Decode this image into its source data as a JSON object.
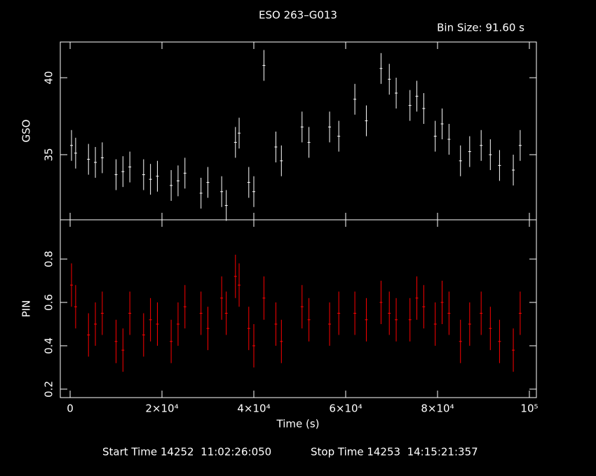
{
  "chart_data": [
    {
      "type": "errorbar",
      "title": "ESO 263–G013",
      "subtitle": "Bin Size: 91.60 s",
      "ylabel": "GSO",
      "color": "#ffffff",
      "x": [
        300,
        1200,
        4000,
        5500,
        7000,
        10000,
        11500,
        13000,
        16000,
        17500,
        19000,
        22000,
        23500,
        25000,
        28500,
        30000,
        33000,
        34000,
        36000,
        36800,
        38900,
        40000,
        42200,
        44800,
        46000,
        50500,
        52000,
        56500,
        58500,
        62000,
        64500,
        67700,
        69500,
        71000,
        74000,
        75500,
        77000,
        79500,
        81000,
        82500,
        85000,
        87000,
        89500,
        91500,
        93500,
        96500,
        98000
      ],
      "values": [
        35.6,
        35.1,
        34.7,
        34.5,
        34.8,
        33.7,
        33.9,
        34.2,
        33.7,
        33.4,
        33.6,
        33.0,
        33.3,
        33.8,
        32.5,
        33.2,
        32.6,
        31.7,
        35.8,
        36.4,
        33.2,
        32.6,
        40.8,
        35.5,
        34.6,
        36.8,
        35.8,
        36.8,
        36.2,
        38.6,
        37.2,
        40.6,
        39.9,
        39.0,
        38.2,
        38.8,
        38.0,
        36.2,
        37.0,
        36.0,
        34.6,
        35.2,
        35.6,
        35.0,
        34.3,
        34.0,
        35.6
      ],
      "errors": [
        1.0,
        1.0,
        1.0,
        1.0,
        1.0,
        1.0,
        1.0,
        1.0,
        1.0,
        1.0,
        1.0,
        1.0,
        1.0,
        1.0,
        1.0,
        1.0,
        1.0,
        1.0,
        1.0,
        1.0,
        1.0,
        1.0,
        1.0,
        1.0,
        1.0,
        1.0,
        1.0,
        1.0,
        1.0,
        1.0,
        1.0,
        1.0,
        1.0,
        1.0,
        1.0,
        1.0,
        1.0,
        1.0,
        1.0,
        1.0,
        1.0,
        1.0,
        1.0,
        1.0,
        1.0,
        1.0,
        1.0
      ],
      "xlim": [
        -2140,
        101530
      ],
      "ylim": [
        30.77,
        42.32
      ],
      "yticks": [
        35,
        40
      ]
    },
    {
      "type": "errorbar",
      "ylabel": "PIN",
      "xlabel": "Time (s)",
      "color": "#ff0000",
      "x": [
        300,
        1200,
        4000,
        5500,
        7000,
        10000,
        11500,
        13000,
        16000,
        17500,
        19000,
        22000,
        23500,
        25000,
        28500,
        30000,
        33000,
        34000,
        36000,
        36800,
        38900,
        40000,
        42200,
        44800,
        46000,
        50500,
        52000,
        56500,
        58500,
        62000,
        64500,
        67700,
        69500,
        71000,
        74000,
        75500,
        77000,
        79500,
        81000,
        82500,
        85000,
        87000,
        89500,
        91500,
        93500,
        96500,
        98000
      ],
      "values": [
        0.68,
        0.58,
        0.45,
        0.5,
        0.55,
        0.42,
        0.38,
        0.55,
        0.45,
        0.52,
        0.5,
        0.42,
        0.5,
        0.58,
        0.55,
        0.48,
        0.62,
        0.55,
        0.72,
        0.68,
        0.48,
        0.4,
        0.62,
        0.5,
        0.42,
        0.58,
        0.52,
        0.5,
        0.55,
        0.55,
        0.52,
        0.6,
        0.55,
        0.52,
        0.52,
        0.62,
        0.58,
        0.5,
        0.6,
        0.55,
        0.42,
        0.5,
        0.55,
        0.48,
        0.42,
        0.38,
        0.55
      ],
      "errors": [
        0.1,
        0.1,
        0.1,
        0.1,
        0.1,
        0.1,
        0.1,
        0.1,
        0.1,
        0.1,
        0.1,
        0.1,
        0.1,
        0.1,
        0.1,
        0.1,
        0.1,
        0.1,
        0.1,
        0.1,
        0.1,
        0.1,
        0.1,
        0.1,
        0.1,
        0.1,
        0.1,
        0.1,
        0.1,
        0.1,
        0.1,
        0.1,
        0.1,
        0.1,
        0.1,
        0.1,
        0.1,
        0.1,
        0.1,
        0.1,
        0.1,
        0.1,
        0.1,
        0.1,
        0.1,
        0.1,
        0.1
      ],
      "xlim": [
        -2140,
        101530
      ],
      "ylim": [
        0.161,
        0.981
      ],
      "yticks": [
        0.2,
        0.4,
        0.6,
        0.8
      ],
      "xticks": [
        0,
        {
          "value": 20000,
          "label": "2×10⁴"
        },
        {
          "value": 40000,
          "label": "4×10⁴"
        },
        {
          "value": 60000,
          "label": "6×10⁴"
        },
        {
          "value": 80000,
          "label": "8×10⁴"
        },
        {
          "value": 100000,
          "label": "10⁵"
        }
      ],
      "annotations": [
        "Start Time 14252  11:02:26:050",
        "Stop Time 14253  14:15:21:357"
      ]
    }
  ]
}
